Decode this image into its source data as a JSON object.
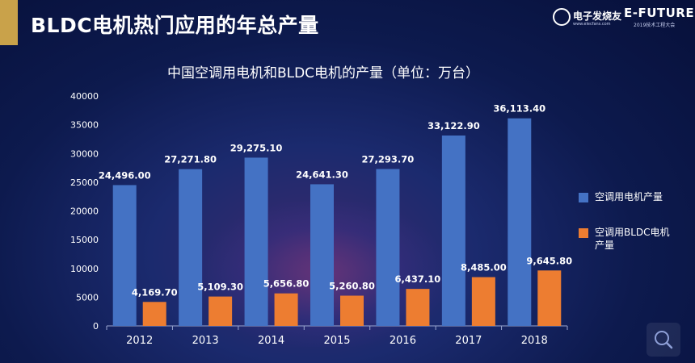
{
  "header": {
    "title": "BLDC电机热门应用的年总产量",
    "logo_left_name": "电子发烧友",
    "logo_left_sub": "www.elecfans.com",
    "logo_right_name": "E-FUTURE",
    "logo_right_sub": "2019技术工程大会"
  },
  "colors": {
    "series1": "#4472c4",
    "series2": "#ed7d31",
    "accent": "#c9a24a"
  },
  "chart_data": {
    "type": "bar",
    "title": "中国空调用电机和BLDC电机的产量（单位：万台）",
    "categories": [
      "2012",
      "2013",
      "2014",
      "2015",
      "2016",
      "2017",
      "2018"
    ],
    "series": [
      {
        "name": "空调用电机产量",
        "values": [
          24496.0,
          27271.8,
          29275.1,
          24641.3,
          27293.7,
          33122.9,
          36113.4
        ],
        "labels": [
          "24,496.00",
          "27,271.80",
          "29,275.10",
          "24,641.30",
          "27,293.70",
          "33,122.90",
          "36,113.40"
        ]
      },
      {
        "name": "空调用BLDC电机产量",
        "values": [
          4169.7,
          5109.3,
          5656.8,
          5260.8,
          6437.1,
          8485.0,
          9645.8
        ],
        "labels": [
          "4,169.70",
          "5,109.30",
          "5,656.80",
          "5,260.80",
          "6,437.10",
          "8,485.00",
          "9,645.80"
        ]
      }
    ],
    "yticks": [
      "0",
      "5000",
      "10000",
      "15000",
      "20000",
      "25000",
      "30000",
      "35000",
      "40000"
    ],
    "ylim": [
      0,
      40000
    ],
    "grid": false,
    "legend_position": "right"
  },
  "icons": {
    "bottom_right": "search-icon"
  }
}
